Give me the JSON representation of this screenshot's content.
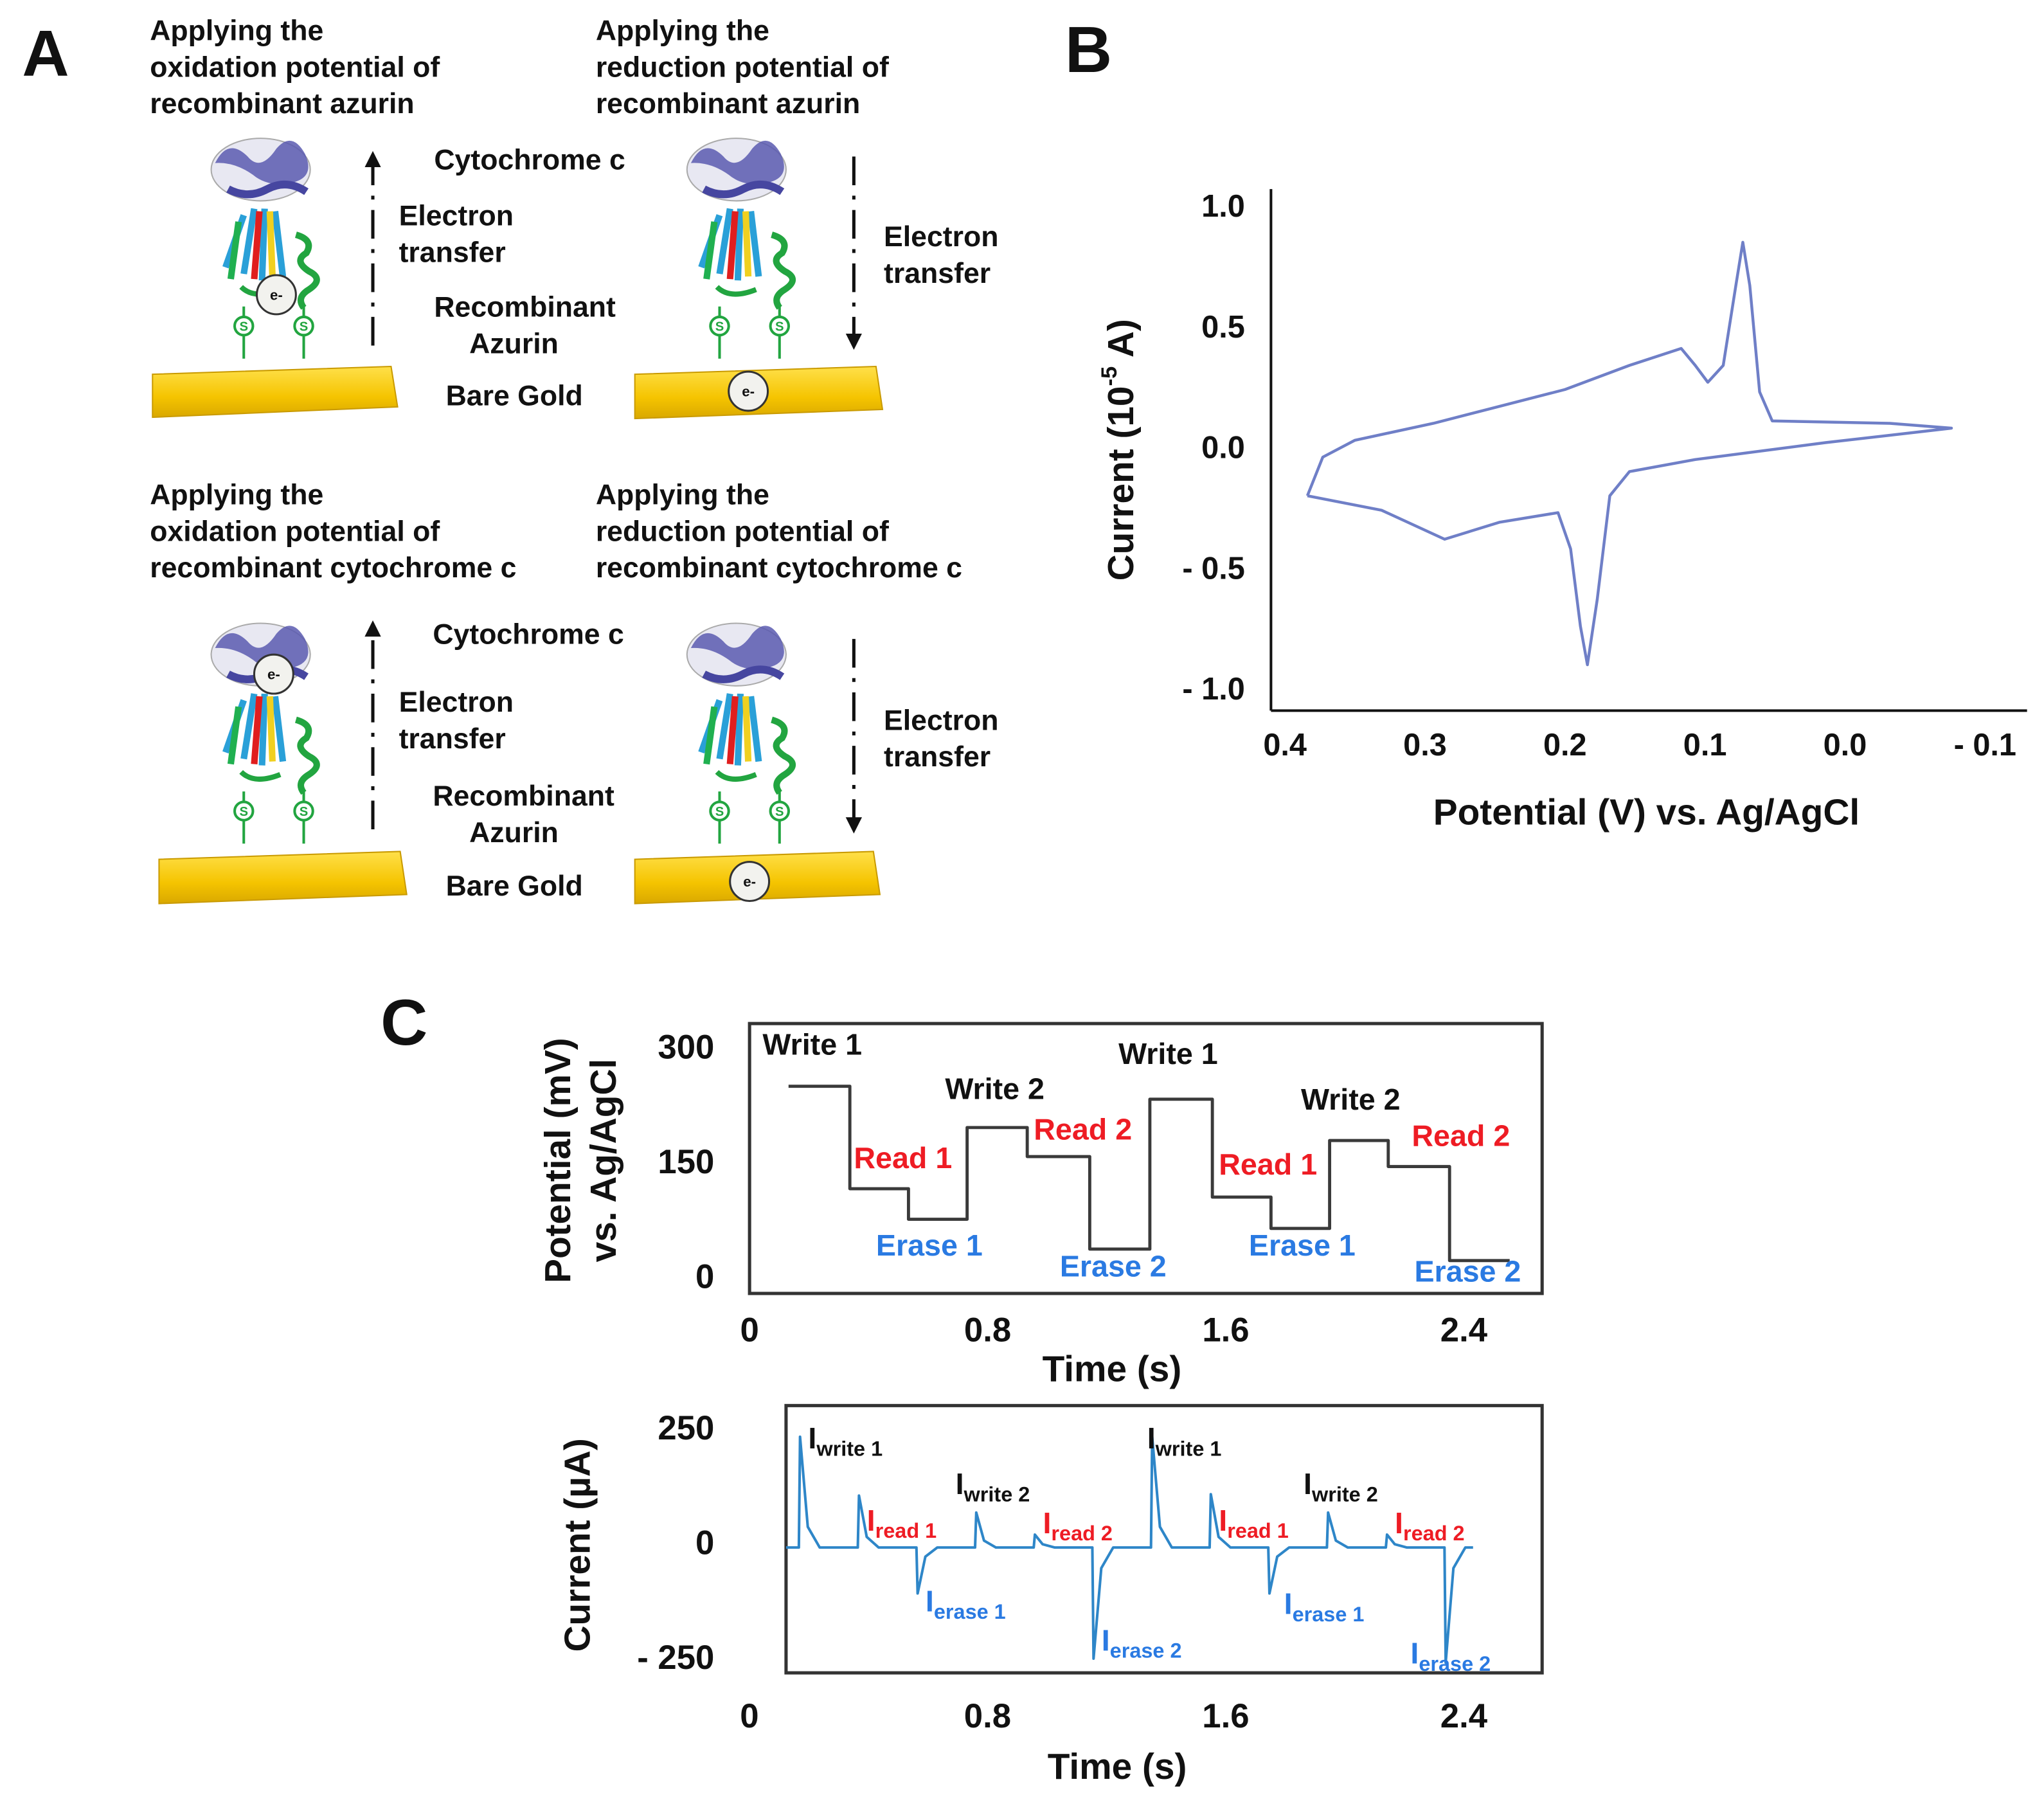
{
  "panel_labels": [
    "A",
    "B",
    "C"
  ],
  "panel_a": {
    "captions": [
      [
        "Applying the",
        "oxidation potential of",
        "recombinant azurin"
      ],
      [
        "Applying the",
        "reduction potential of",
        "recombinant azurin"
      ],
      [
        "Applying the",
        "oxidation potential of",
        "recombinant cytochrome c"
      ],
      [
        "Applying the",
        "reduction potential of",
        "recombinant cytochrome c"
      ]
    ],
    "cytochrome": "Cytochrome c",
    "electron_transfer": [
      "Electron",
      "transfer"
    ],
    "azurin": [
      "Recombinant",
      "Azurin"
    ],
    "gold": "Bare Gold",
    "electron": "e-"
  },
  "chart_data": [
    {
      "type": "line",
      "ylabel": "Current (10",
      "ylabel_sup": "-5",
      "ylabel_end": " A)",
      "xlabel": "Potential (V) vs. Ag/AgCl",
      "color": "#6f7fc7",
      "xlim": [
        0.41,
        -0.13
      ],
      "ylim": [
        -1.08,
        1.08
      ],
      "xticks": [
        0.4,
        0.3,
        0.2,
        0.1,
        {
          "value": 0,
          "label": "0.0"
        },
        {
          "value": -0.1,
          "label": "- 0.1"
        }
      ],
      "yticks": [
        {
          "value": 1,
          "label": "1.0"
        },
        0.5,
        {
          "value": 0,
          "label": "0.0"
        },
        {
          "value": -0.5,
          "label": "- 0.5"
        },
        {
          "value": -1,
          "label": "- 1.0"
        }
      ],
      "x": [
        0.384,
        0.331,
        0.286,
        0.247,
        0.205,
        0.196,
        0.189,
        0.184,
        0.177,
        0.168,
        0.154,
        0.107,
        0.014,
        -0.076,
        -0.032,
        0.052,
        0.061,
        0.068,
        0.073,
        0.078,
        0.087,
        0.098,
        0.107,
        0.117,
        0.154,
        0.2,
        0.294,
        0.35,
        0.373,
        0.384
      ],
      "values": [
        -0.19,
        -0.25,
        -0.37,
        -0.3,
        -0.26,
        -0.41,
        -0.73,
        -0.89,
        -0.62,
        -0.19,
        -0.09,
        -0.04,
        0.03,
        0.09,
        0.11,
        0.12,
        0.24,
        0.68,
        0.86,
        0.68,
        0.35,
        0.28,
        0.35,
        0.42,
        0.35,
        0.25,
        0.11,
        0.04,
        -0.03,
        -0.19
      ]
    },
    {
      "type": "line",
      "ylabel": [
        "Potential (mV)",
        "vs. Ag/AgCl"
      ],
      "xlabel": "Time (s)",
      "color": "#3a3a3a",
      "xlim": [
        0,
        2.663
      ],
      "ylim": [
        -19,
        334
      ],
      "xticks": [
        0,
        0.8,
        1.6,
        2.4
      ],
      "yticks": [
        300,
        150,
        0
      ],
      "x": [
        0.131,
        0.337,
        0.337,
        0.534,
        0.534,
        0.731,
        0.731,
        0.933,
        0.933,
        1.143,
        1.143,
        1.345,
        1.345,
        1.555,
        1.555,
        1.752,
        1.752,
        1.949,
        1.949,
        2.146,
        2.146,
        2.352,
        2.352,
        2.554
      ],
      "values": [
        252,
        252,
        118,
        118,
        78,
        78,
        198,
        198,
        160,
        160,
        39,
        39,
        235,
        235,
        107,
        107,
        66,
        66,
        181,
        181,
        147,
        147,
        24,
        24
      ],
      "annotations": [
        {
          "text": "Write 1",
          "color": "#111111"
        },
        {
          "text": "Read 1",
          "color": "#ee1c24"
        },
        {
          "text": "Erase 1",
          "color": "#2a7ae2"
        },
        {
          "text": "Write 2",
          "color": "#111111"
        },
        {
          "text": "Read 2",
          "color": "#ee1c24"
        },
        {
          "text": "Erase 2",
          "color": "#2a7ae2"
        },
        {
          "text": "Write 1",
          "color": "#111111"
        },
        {
          "text": "Read 1",
          "color": "#ee1c24"
        },
        {
          "text": "Erase 1",
          "color": "#2a7ae2"
        },
        {
          "text": "Write 2",
          "color": "#111111"
        },
        {
          "text": "Read 2",
          "color": "#ee1c24"
        },
        {
          "text": "Erase 2",
          "color": "#2a7ae2"
        }
      ]
    },
    {
      "type": "line",
      "ylabel": "Current (µA)",
      "xlabel": "Time (s)",
      "color": "#2e86c8",
      "xlim": [
        0.123,
        2.663
      ],
      "ylim": [
        -278,
        304
      ],
      "xticks": [
        0,
        0.8,
        1.6,
        2.4
      ],
      "yticks": [
        250,
        0,
        {
          "value": -250,
          "label": "- 250"
        }
      ],
      "x": [
        0.123,
        0.166,
        0.17,
        0.196,
        0.236,
        0.364,
        0.368,
        0.394,
        0.434,
        0.561,
        0.565,
        0.591,
        0.631,
        0.758,
        0.762,
        0.788,
        0.828,
        0.955,
        0.959,
        0.985,
        1.025,
        1.152,
        1.156,
        1.182,
        1.222,
        1.349,
        1.353,
        1.379,
        1.419,
        1.546,
        1.55,
        1.576,
        1.616,
        1.743,
        1.747,
        1.773,
        1.813,
        1.94,
        1.944,
        1.97,
        2.01,
        2.138,
        2.142,
        2.168,
        2.208,
        2.335,
        2.339,
        2.365,
        2.405,
        2.431
      ],
      "values": [
        -5,
        -5,
        236,
        40,
        -5,
        -5,
        108,
        18,
        -5,
        -5,
        -105,
        -25,
        -5,
        -5,
        71,
        10,
        -5,
        -5,
        23,
        2,
        -5,
        -5,
        -247,
        -50,
        -5,
        -5,
        236,
        40,
        -5,
        -5,
        111,
        18,
        -5,
        -5,
        -105,
        -25,
        -5,
        -5,
        71,
        10,
        -5,
        -5,
        23,
        2,
        -5,
        -5,
        -256,
        -50,
        -5,
        -5
      ],
      "annotations": [
        {
          "text": "I",
          "sub": "write 1",
          "color": "#111111"
        },
        {
          "text": "I",
          "sub": "read 1",
          "color": "#ee1c24"
        },
        {
          "text": "I",
          "sub": "write 2",
          "color": "#111111"
        },
        {
          "text": "I",
          "sub": "read 2",
          "color": "#ee1c24"
        },
        {
          "text": "I",
          "sub": "erase 1",
          "color": "#2a7ae2"
        },
        {
          "text": "I",
          "sub": "erase 2",
          "color": "#2a7ae2"
        },
        {
          "text": "I",
          "sub": "write 1",
          "color": "#111111"
        },
        {
          "text": "I",
          "sub": "read 1",
          "color": "#ee1c24"
        },
        {
          "text": "I",
          "sub": "write 2",
          "color": "#111111"
        },
        {
          "text": "I",
          "sub": "erase 1",
          "color": "#2a7ae2"
        },
        {
          "text": "I",
          "sub": "read 2",
          "color": "#ee1c24"
        },
        {
          "text": "I",
          "sub": "erase 2",
          "color": "#2a7ae2"
        }
      ]
    }
  ]
}
